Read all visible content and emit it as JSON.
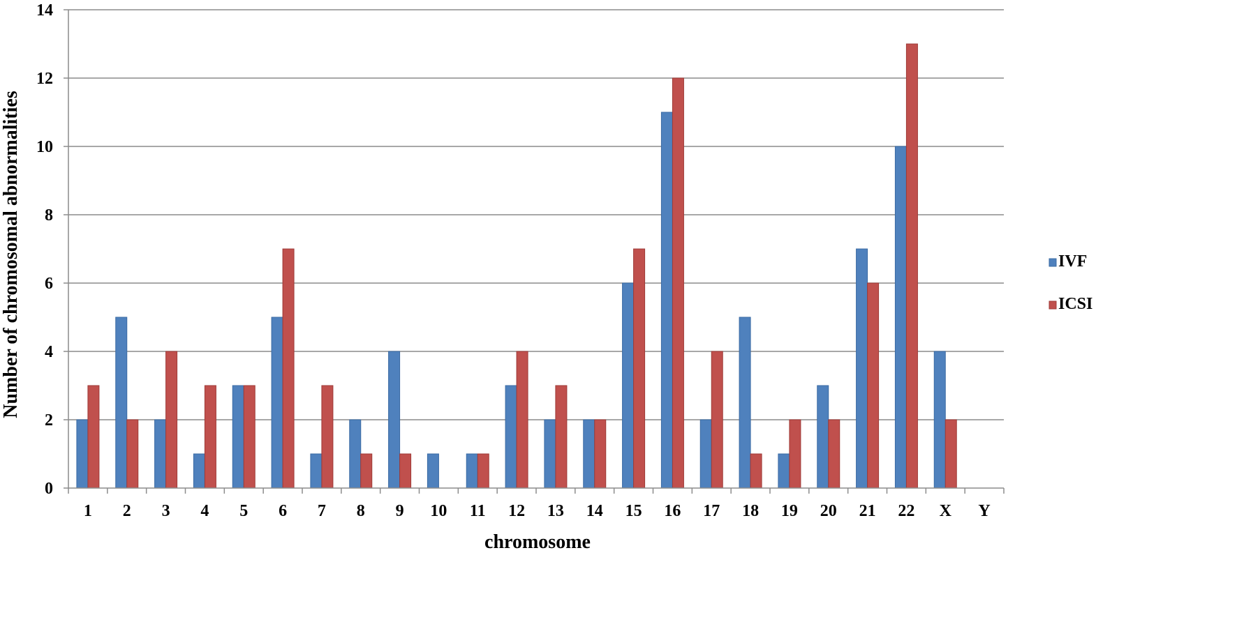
{
  "chart_data": {
    "type": "bar",
    "title": "",
    "xlabel": "chromosome",
    "ylabel": "Number of chromosomal abnormalities",
    "ylim": [
      0,
      14
    ],
    "yticks": [
      0,
      2,
      4,
      6,
      8,
      10,
      12,
      14
    ],
    "grid": true,
    "legend_position": "right",
    "categories": [
      "1",
      "2",
      "3",
      "4",
      "5",
      "6",
      "7",
      "8",
      "9",
      "10",
      "11",
      "12",
      "13",
      "14",
      "15",
      "16",
      "17",
      "18",
      "19",
      "20",
      "21",
      "22",
      "X",
      "Y"
    ],
    "series": [
      {
        "name": "IVF",
        "color": "#4f81bd",
        "values": [
          2,
          5,
          2,
          1,
          3,
          5,
          1,
          2,
          4,
          1,
          1,
          3,
          2,
          2,
          6,
          11,
          2,
          5,
          1,
          3,
          7,
          10,
          4,
          0
        ]
      },
      {
        "name": "ICSI",
        "color": "#c0504d",
        "values": [
          3,
          2,
          4,
          3,
          3,
          7,
          3,
          1,
          1,
          0,
          1,
          4,
          3,
          2,
          7,
          12,
          4,
          1,
          2,
          2,
          6,
          13,
          2,
          0
        ]
      }
    ]
  }
}
